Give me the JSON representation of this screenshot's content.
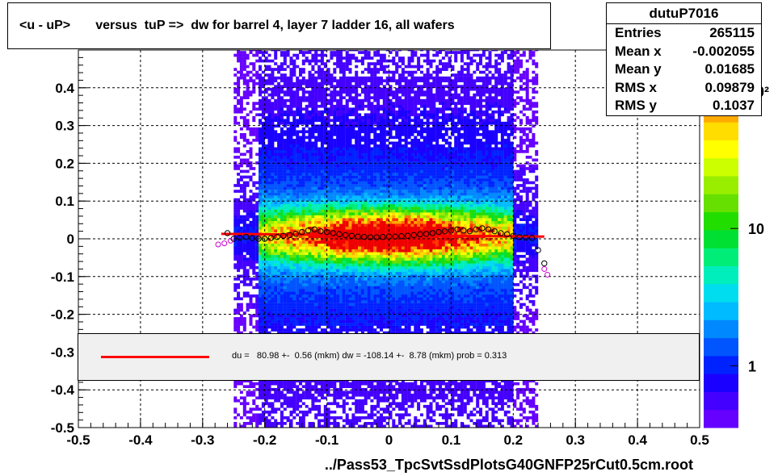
{
  "title": "<u - uP>       versus  tuP =>  dw for barrel 4, layer 7 ladder 16, all wafers",
  "stats": {
    "name": "dutuP7016",
    "rows": [
      {
        "label": "Entries",
        "value": "265115"
      },
      {
        "label": "Mean x",
        "value": "-0.002055"
      },
      {
        "label": "Mean y",
        "value": "0.01685"
      },
      {
        "label": "RMS x",
        "value": "0.09879"
      },
      {
        "label": "RMS y",
        "value": "0.1037"
      }
    ]
  },
  "fit_text": "du =   80.98 +-  0.56 (mkm) dw = -108.14 +-  8.78 (mkm) prob = 0.313",
  "xlabel": "../Pass53_TpcSvtSsdPlotsG40GNFP25rCut0.5cm.root",
  "colors": {
    "fit_line": "#ff0000",
    "profile_black": "#000000",
    "profile_magenta": "#cc00cc"
  },
  "chart_data": {
    "type": "heatmap",
    "xlim": [
      -0.5,
      0.5
    ],
    "ylim": [
      -0.5,
      0.5
    ],
    "x_ticks": [
      "-0.5",
      "-0.4",
      "-0.3",
      "-0.2",
      "-0.1",
      "0",
      "0.1",
      "0.2",
      "0.3",
      "0.4",
      "0.5"
    ],
    "y_ticks": [
      "-0.5",
      "-0.4",
      "-0.3",
      "-0.2",
      "-0.1",
      "0",
      "0.1",
      "0.2",
      "0.3",
      "0.4"
    ],
    "x_tick_values": [
      -0.5,
      -0.4,
      -0.3,
      -0.2,
      -0.1,
      0,
      0.1,
      0.2,
      0.3,
      0.4,
      0.5
    ],
    "y_tick_values": [
      -0.5,
      -0.4,
      -0.3,
      -0.2,
      -0.1,
      0,
      0.1,
      0.2,
      0.3,
      0.4
    ],
    "z_scale": "log",
    "z_ticks": [
      {
        "label": "1",
        "value": 1
      },
      {
        "label": "10",
        "value": 10
      },
      {
        "label": "10²",
        "value": 100
      }
    ],
    "grid": true,
    "data_x_range": [
      -0.21,
      0.2
    ],
    "fit_line": {
      "x": [
        -0.27,
        0.25
      ],
      "y": [
        0.013,
        0.006
      ]
    },
    "profile_black": {
      "x": [
        -0.26,
        -0.25,
        -0.24,
        -0.23,
        -0.22,
        -0.21,
        -0.2,
        -0.19,
        -0.18,
        -0.17,
        -0.16,
        -0.15,
        -0.14,
        -0.13,
        -0.12,
        -0.11,
        -0.1,
        -0.09,
        -0.08,
        -0.07,
        -0.06,
        -0.05,
        -0.04,
        -0.03,
        -0.02,
        -0.01,
        0.0,
        0.01,
        0.02,
        0.03,
        0.04,
        0.05,
        0.06,
        0.07,
        0.08,
        0.09,
        0.1,
        0.11,
        0.12,
        0.13,
        0.14,
        0.15,
        0.16,
        0.17,
        0.18,
        0.19,
        0.2,
        0.21,
        0.22,
        0.23,
        0.24,
        0.25
      ],
      "y": [
        0.015,
        0.0,
        0.003,
        0.005,
        0.002,
        0.0,
        0.0,
        0.002,
        0.005,
        0.008,
        0.01,
        0.013,
        0.018,
        0.022,
        0.025,
        0.02,
        0.018,
        0.015,
        0.012,
        0.01,
        0.008,
        0.006,
        0.005,
        0.004,
        0.004,
        0.005,
        0.006,
        0.006,
        0.007,
        0.008,
        0.01,
        0.012,
        0.013,
        0.015,
        0.018,
        0.02,
        0.022,
        0.025,
        0.022,
        0.02,
        0.025,
        0.028,
        0.025,
        0.02,
        0.015,
        0.012,
        0.008,
        0.004,
        0.003,
        0.002,
        -0.03,
        -0.065
      ]
    },
    "profile_magenta": {
      "x": [
        -0.275,
        -0.265,
        -0.255,
        0.25,
        0.255
      ],
      "y": [
        -0.015,
        -0.012,
        -0.005,
        -0.08,
        -0.095
      ]
    }
  }
}
